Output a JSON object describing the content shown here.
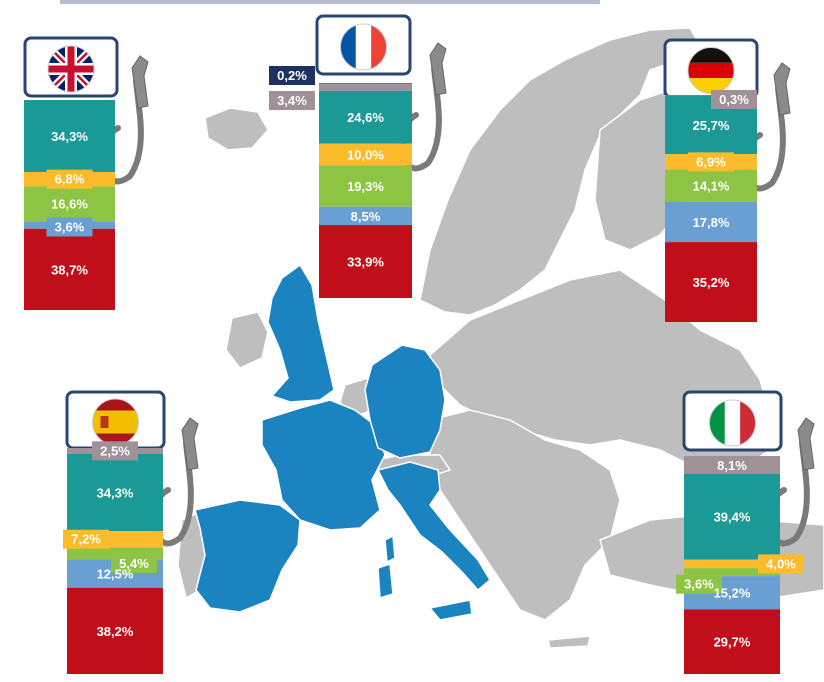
{
  "palette": {
    "teal": "#1a9996",
    "yellow": "#fbbb2a",
    "lightgreen": "#8dc444",
    "blue": "#6a9fd3",
    "red": "#c00f1a",
    "mauve": "#a09198",
    "navy": "#1e3260",
    "map_gray": "#bebebe",
    "map_highlight": "#1b83bf",
    "frame": "#2a4474"
  },
  "chart_data": [
    {
      "type": "bar",
      "country": "United Kingdom",
      "flag_icon": "uk-flag-icon",
      "values": [
        34.3,
        6.8,
        16.6,
        3.6,
        38.7
      ],
      "labels": [
        "34,3%",
        "6,8%",
        "16,6%",
        "3,6%",
        "38,7%"
      ],
      "colors": [
        "teal",
        "yellow",
        "lightgreen",
        "blue",
        "red"
      ]
    },
    {
      "type": "bar",
      "country": "France",
      "flag_icon": "france-flag-icon",
      "values": [
        0.2,
        3.4,
        24.6,
        10.0,
        19.3,
        8.5,
        33.9
      ],
      "labels": [
        "0,2%",
        "3,4%",
        "24,6%",
        "10,0%",
        "19,3%",
        "8,5%",
        "33,9%"
      ],
      "colors": [
        "navy",
        "mauve",
        "teal",
        "yellow",
        "lightgreen",
        "blue",
        "red"
      ]
    },
    {
      "type": "bar",
      "country": "Germany",
      "flag_icon": "germany-flag-icon",
      "values": [
        0.3,
        25.7,
        6.9,
        14.1,
        17.8,
        35.2
      ],
      "labels": [
        "0,3%",
        "25,7%",
        "6,9%",
        "14,1%",
        "17,8%",
        "35,2%"
      ],
      "colors": [
        "mauve",
        "teal",
        "yellow",
        "lightgreen",
        "blue",
        "red"
      ]
    },
    {
      "type": "bar",
      "country": "Spain",
      "flag_icon": "spain-flag-icon",
      "values": [
        2.5,
        34.3,
        7.2,
        5.4,
        12.5,
        38.2
      ],
      "labels": [
        "2,5%",
        "34,3%",
        "7,2%",
        "5,4%",
        "12,5%",
        "38,2%"
      ],
      "colors": [
        "mauve",
        "teal",
        "yellow",
        "lightgreen",
        "blue",
        "red"
      ]
    },
    {
      "type": "bar",
      "country": "Italy",
      "flag_icon": "italy-flag-icon",
      "values": [
        8.1,
        39.4,
        4.0,
        3.6,
        15.2,
        29.7
      ],
      "labels": [
        "8,1%",
        "39,4%",
        "4,0%",
        "3,6%",
        "15,2%",
        "29,7%"
      ],
      "colors": [
        "mauve",
        "teal",
        "yellow",
        "lightgreen",
        "blue",
        "red"
      ]
    }
  ]
}
